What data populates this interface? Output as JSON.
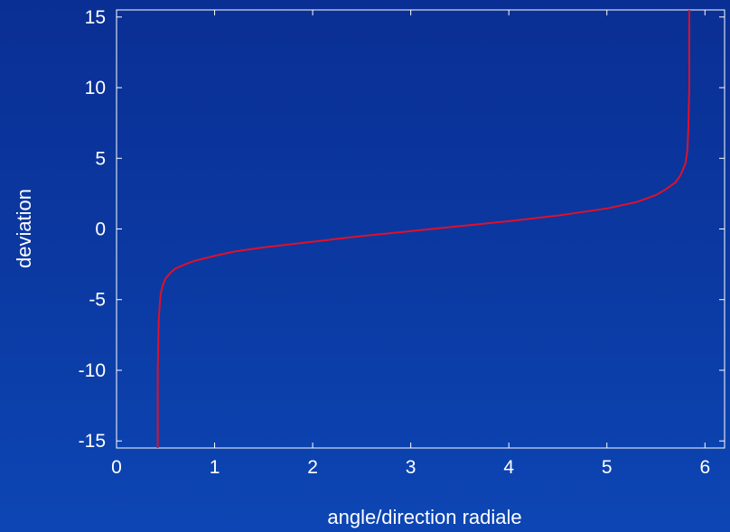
{
  "chart_data": {
    "type": "line",
    "title": "",
    "xlabel": "angle/direction radiale",
    "ylabel": "deviation",
    "xlim": [
      0,
      6.2
    ],
    "ylim": [
      -15.5,
      15.5
    ],
    "x_ticks": [
      0,
      1,
      2,
      3,
      4,
      5,
      6
    ],
    "y_ticks": [
      15,
      10,
      5,
      0,
      -5,
      -10,
      -15
    ],
    "grid": false,
    "legend": "none",
    "colors": {
      "background": "#0b3aa3",
      "axes": "#ffffff",
      "curve": "#e0102a"
    },
    "series": [
      {
        "color": "#e0102a",
        "x": [
          0.42,
          0.42,
          0.43,
          0.44,
          0.45,
          0.47,
          0.5,
          0.55,
          0.6,
          0.7,
          0.8,
          1.0,
          1.2,
          1.5,
          2.0,
          2.5,
          3.0,
          3.5,
          4.0,
          4.5,
          5.0,
          5.3,
          5.5,
          5.6,
          5.7,
          5.75,
          5.8,
          5.82,
          5.83,
          5.84,
          5.84
        ],
        "y": [
          -15.5,
          -10,
          -6.5,
          -5.4,
          -4.6,
          -4.0,
          -3.5,
          -3.1,
          -2.8,
          -2.5,
          -2.25,
          -1.9,
          -1.6,
          -1.3,
          -0.9,
          -0.5,
          -0.15,
          0.2,
          0.55,
          0.95,
          1.45,
          1.9,
          2.4,
          2.8,
          3.3,
          3.8,
          4.6,
          5.5,
          7.0,
          10.0,
          15.5
        ]
      }
    ]
  }
}
